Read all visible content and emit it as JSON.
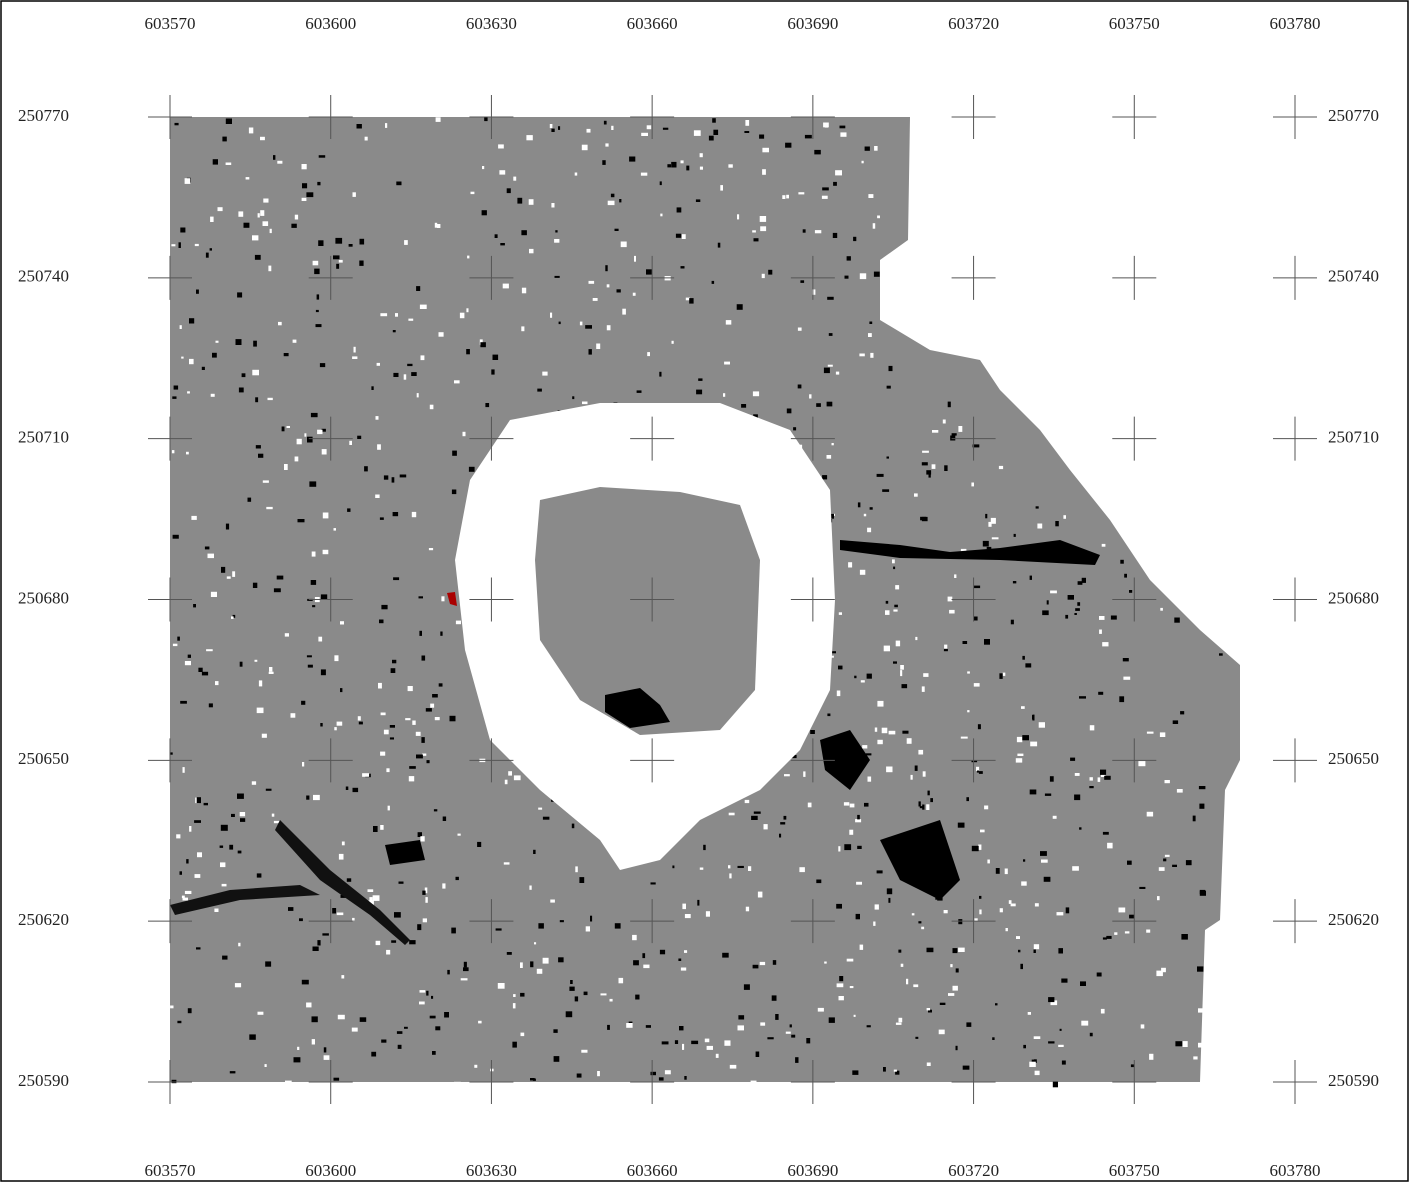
{
  "map": {
    "x_ticks": [
      603570,
      603600,
      603630,
      603660,
      603690,
      603720,
      603750,
      603780
    ],
    "y_ticks": [
      250770,
      250740,
      250710,
      250680,
      250650,
      250620,
      250590
    ]
  }
}
